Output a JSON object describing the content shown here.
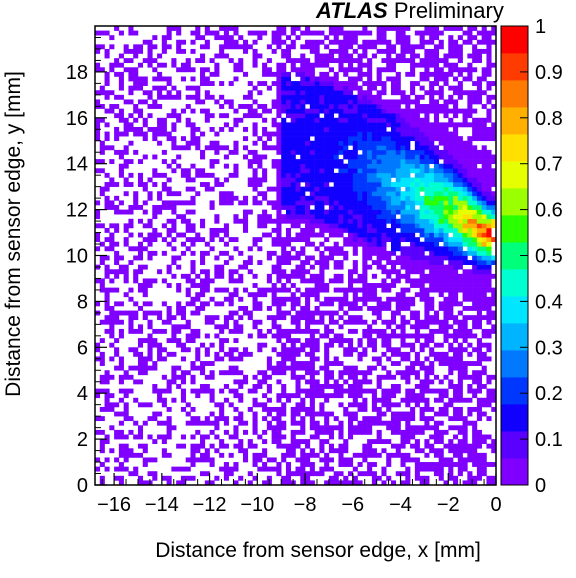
{
  "chart_data": {
    "type": "heatmap",
    "title": "",
    "label": {
      "bold": "ATLAS",
      "rest": " Preliminary"
    },
    "xlabel": "Distance from sensor edge, x [mm]",
    "ylabel": "Distance from sensor edge, y [mm]",
    "xlim": [
      -16.8,
      0
    ],
    "ylim": [
      0,
      20
    ],
    "x_ticks": [
      "-16",
      "-14",
      "-12",
      "-10",
      "-8",
      "-6",
      "-4",
      "-2",
      "0"
    ],
    "y_ticks": [
      "0",
      "2",
      "4",
      "6",
      "8",
      "10",
      "12",
      "14",
      "16",
      "18"
    ],
    "zlim": [
      0,
      1
    ],
    "z_ticks": [
      "0",
      "0.1",
      "0.2",
      "0.3",
      "0.4",
      "0.5",
      "0.6",
      "0.7",
      "0.8",
      "0.9",
      "1"
    ],
    "palette": [
      "#7f00ff",
      "#5a00ff",
      "#1200ff",
      "#0037ff",
      "#0079ff",
      "#00b4ff",
      "#00e6ff",
      "#00ffd0",
      "#00ff7a",
      "#2bff00",
      "#9bff00",
      "#e5ff00",
      "#ffe000",
      "#ffb000",
      "#ff7a00",
      "#ff3c00",
      "#ff0000"
    ],
    "band": {
      "description_points": [
        [
          -8.0,
          14.8
        ],
        [
          -6.0,
          14.0
        ],
        [
          -4.0,
          13.0
        ],
        [
          -2.0,
          12.0
        ],
        [
          -0.3,
          10.9
        ]
      ],
      "peak_x": -0.4,
      "peak_y": 10.9,
      "peak_value": 0.95
    },
    "grid": false
  }
}
